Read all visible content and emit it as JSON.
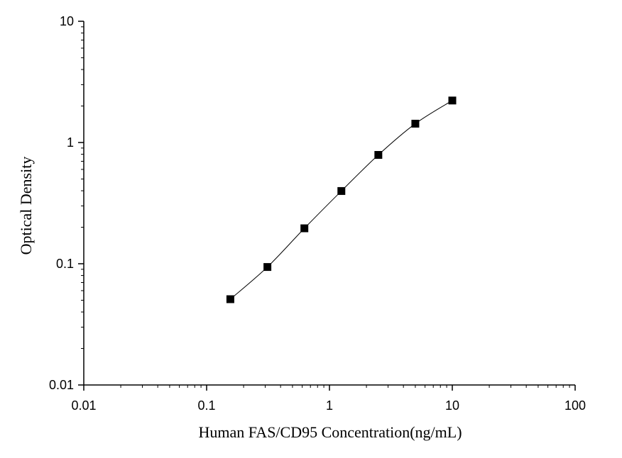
{
  "chart_data": {
    "type": "scatter",
    "xlabel": "Human FAS/CD95 Concentration(ng/mL)",
    "ylabel": "Optical Density",
    "x_scale": "log",
    "y_scale": "log",
    "xlim": [
      0.01,
      100
    ],
    "ylim": [
      0.01,
      10
    ],
    "x_ticks": [
      "0.01",
      "0.1",
      "1",
      "10",
      "100"
    ],
    "y_ticks": [
      "0.01",
      "0.1",
      "1",
      "10"
    ],
    "grid": false,
    "series": [
      {
        "x": [
          0.156,
          0.3125,
          0.625,
          1.25,
          2.5,
          5,
          10
        ],
        "y": [
          0.051,
          0.094,
          0.196,
          0.398,
          0.79,
          1.43,
          2.22
        ],
        "marker": "square",
        "fit_curve": true
      }
    ],
    "colors": {
      "marker": "#000000",
      "curve": "#000000",
      "axis": "#000000"
    }
  }
}
